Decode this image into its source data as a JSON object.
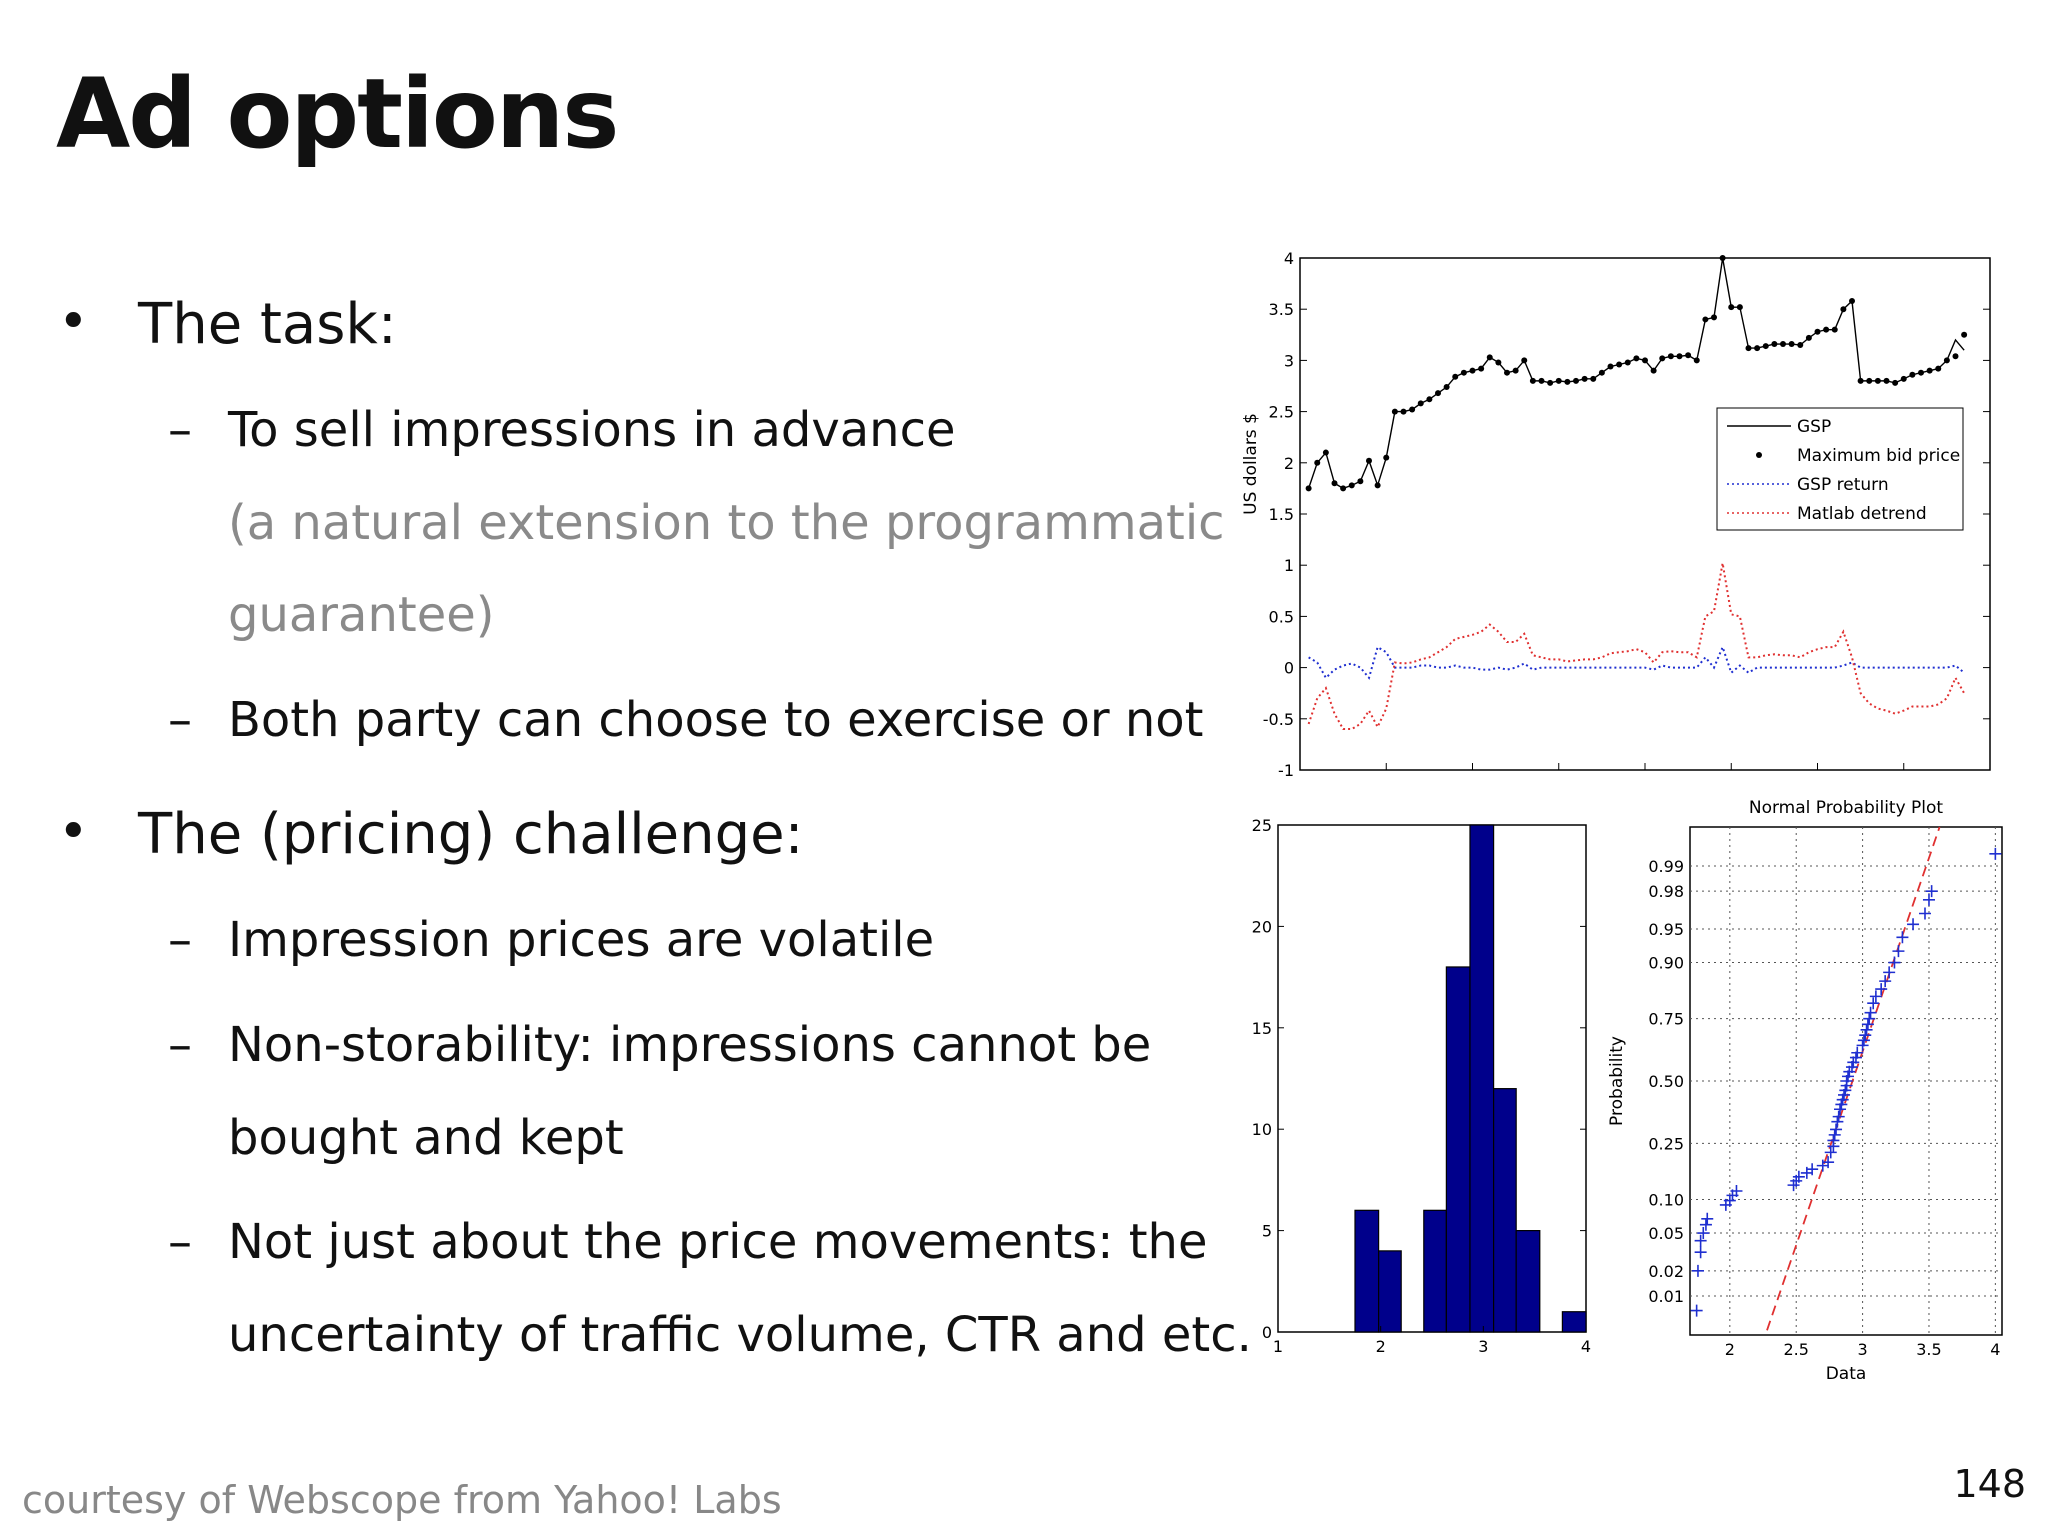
{
  "slide": {
    "title": "Ad options",
    "bullets": [
      {
        "label": "The task:",
        "subs": [
          {
            "lines": [
              "To sell impressions in advance"
            ],
            "note": [
              "(a natural extension to the programmatic",
              "guarantee)"
            ]
          },
          {
            "lines": [
              "Both party can choose to exercise or not"
            ]
          }
        ]
      },
      {
        "label": "The (pricing) challenge:",
        "subs": [
          {
            "lines": [
              "Impression prices are volatile"
            ]
          },
          {
            "lines": [
              "Non-storability: impressions cannot be",
              "bought and kept"
            ]
          },
          {
            "lines": [
              "Not just about the price movements: the",
              "uncertainty of traffic volume, CTR and etc."
            ]
          }
        ]
      }
    ],
    "bullet_glyph": "•",
    "dash_glyph": "–",
    "footer": "courtesy of Webscope from Yahoo! Labs",
    "page_number": "148"
  },
  "chart_data": [
    {
      "type": "line",
      "ylabel": "US dollars $",
      "ylim": [
        -1,
        4
      ],
      "xlim": [
        0,
        80
      ],
      "yticks": [
        "4",
        "3.5",
        "3",
        "2.5",
        "2",
        "1.5",
        "1",
        "0.5",
        "0",
        "-0.5",
        "-1"
      ],
      "legend_position": "right",
      "series": [
        {
          "name": "GSP",
          "color": "#000000",
          "style": "solid",
          "x": [
            1,
            2,
            3,
            4,
            5,
            6,
            7,
            8,
            9,
            10,
            11,
            12,
            13,
            14,
            15,
            16,
            17,
            18,
            19,
            20,
            21,
            22,
            23,
            24,
            25,
            26,
            27,
            28,
            29,
            30,
            31,
            32,
            33,
            34,
            35,
            36,
            37,
            38,
            39,
            40,
            41,
            42,
            43,
            44,
            45,
            46,
            47,
            48,
            49,
            50,
            51,
            52,
            53,
            54,
            55,
            56,
            57,
            58,
            59,
            60,
            61,
            62,
            63,
            64,
            65,
            66,
            67,
            68,
            69,
            70,
            71,
            72,
            73,
            74,
            75,
            76,
            77
          ],
          "y": [
            1.75,
            2.0,
            2.1,
            1.8,
            1.75,
            1.78,
            1.82,
            2.02,
            1.78,
            2.05,
            2.5,
            2.5,
            2.52,
            2.58,
            2.62,
            2.68,
            2.74,
            2.84,
            2.88,
            2.9,
            2.92,
            3.03,
            2.98,
            2.88,
            2.9,
            3.0,
            2.8,
            2.8,
            2.78,
            2.8,
            2.79,
            2.8,
            2.82,
            2.82,
            2.88,
            2.94,
            2.96,
            2.98,
            3.02,
            3.0,
            2.9,
            3.02,
            3.04,
            3.04,
            3.05,
            3.0,
            3.4,
            3.42,
            4.0,
            3.52,
            3.52,
            3.12,
            3.12,
            3.14,
            3.16,
            3.16,
            3.16,
            3.15,
            3.22,
            3.28,
            3.3,
            3.3,
            3.5,
            3.58,
            2.8,
            2.8,
            2.8,
            2.8,
            2.78,
            2.82,
            2.86,
            2.88,
            2.9,
            2.92,
            3.0,
            3.2,
            3.1
          ]
        },
        {
          "name": "Maximum bid price",
          "color": "#000000",
          "style": "markers",
          "x": [
            1,
            2,
            3,
            4,
            5,
            6,
            7,
            8,
            9,
            10,
            11,
            12,
            13,
            14,
            15,
            16,
            17,
            18,
            19,
            20,
            21,
            22,
            23,
            24,
            25,
            26,
            27,
            28,
            29,
            30,
            31,
            32,
            33,
            34,
            35,
            36,
            37,
            38,
            39,
            40,
            41,
            42,
            43,
            44,
            45,
            46,
            47,
            48,
            49,
            50,
            51,
            52,
            53,
            54,
            55,
            56,
            57,
            58,
            59,
            60,
            61,
            62,
            63,
            64,
            65,
            66,
            67,
            68,
            69,
            70,
            71,
            72,
            73,
            74,
            75,
            76,
            77
          ],
          "y": [
            1.75,
            2.0,
            2.1,
            1.8,
            1.75,
            1.78,
            1.82,
            2.02,
            1.78,
            2.05,
            2.5,
            2.5,
            2.52,
            2.58,
            2.62,
            2.68,
            2.74,
            2.84,
            2.88,
            2.9,
            2.92,
            3.03,
            2.98,
            2.88,
            2.9,
            3.0,
            2.8,
            2.8,
            2.78,
            2.8,
            2.79,
            2.8,
            2.82,
            2.82,
            2.88,
            2.94,
            2.96,
            2.98,
            3.02,
            3.0,
            2.9,
            3.02,
            3.04,
            3.04,
            3.05,
            3.0,
            3.4,
            3.42,
            4.0,
            3.52,
            3.52,
            3.12,
            3.12,
            3.14,
            3.16,
            3.16,
            3.16,
            3.15,
            3.22,
            3.28,
            3.3,
            3.3,
            3.5,
            3.58,
            2.8,
            2.8,
            2.8,
            2.8,
            2.78,
            2.82,
            2.86,
            2.88,
            2.9,
            2.92,
            3.0,
            3.04,
            3.25
          ]
        },
        {
          "name": "GSP return",
          "color": "#1f2fd0",
          "style": "dotted",
          "x": [
            1,
            2,
            3,
            4,
            5,
            6,
            7,
            8,
            9,
            10,
            11,
            12,
            13,
            14,
            15,
            16,
            17,
            18,
            19,
            20,
            21,
            22,
            23,
            24,
            25,
            26,
            27,
            28,
            29,
            30,
            31,
            32,
            33,
            34,
            35,
            36,
            37,
            38,
            39,
            40,
            41,
            42,
            43,
            44,
            45,
            46,
            47,
            48,
            49,
            50,
            51,
            52,
            53,
            54,
            55,
            56,
            57,
            58,
            59,
            60,
            61,
            62,
            63,
            64,
            65,
            66,
            67,
            68,
            69,
            70,
            71,
            72,
            73,
            74,
            75,
            76,
            77
          ],
          "y": [
            0.1,
            0.05,
            -0.1,
            -0.02,
            0.02,
            0.04,
            0.0,
            -0.1,
            0.2,
            0.15,
            0.0,
            0.0,
            0.0,
            0.02,
            0.02,
            0.0,
            0.0,
            0.02,
            0.0,
            0.0,
            -0.02,
            -0.02,
            0.0,
            -0.02,
            0.0,
            0.04,
            -0.02,
            0.0,
            0.0,
            0.0,
            0.0,
            0.0,
            0.0,
            0.0,
            0.0,
            0.0,
            0.0,
            0.0,
            0.0,
            0.0,
            -0.02,
            0.02,
            0.0,
            0.0,
            0.0,
            0.0,
            0.1,
            0.0,
            0.2,
            -0.05,
            0.02,
            -0.05,
            0.0,
            0.0,
            0.0,
            0.0,
            0.0,
            0.0,
            0.0,
            0.0,
            0.0,
            0.0,
            0.02,
            0.05,
            0.0,
            0.0,
            0.0,
            0.0,
            0.0,
            0.0,
            0.0,
            0.0,
            0.0,
            0.0,
            0.0,
            0.02,
            -0.05
          ]
        },
        {
          "name": "Matlab detrend",
          "color": "#e03030",
          "style": "dotted",
          "x": [
            1,
            2,
            3,
            4,
            5,
            6,
            7,
            8,
            9,
            10,
            11,
            12,
            13,
            14,
            15,
            16,
            17,
            18,
            19,
            20,
            21,
            22,
            23,
            24,
            25,
            26,
            27,
            28,
            29,
            30,
            31,
            32,
            33,
            34,
            35,
            36,
            37,
            38,
            39,
            40,
            41,
            42,
            43,
            44,
            45,
            46,
            47,
            48,
            49,
            50,
            51,
            52,
            53,
            54,
            55,
            56,
            57,
            58,
            59,
            60,
            61,
            62,
            63,
            64,
            65,
            66,
            67,
            68,
            69,
            70,
            71,
            72,
            73,
            74,
            75,
            76,
            77
          ],
          "y": [
            -0.55,
            -0.3,
            -0.2,
            -0.45,
            -0.6,
            -0.6,
            -0.55,
            -0.42,
            -0.58,
            -0.4,
            0.05,
            0.04,
            0.05,
            0.08,
            0.1,
            0.15,
            0.2,
            0.28,
            0.3,
            0.32,
            0.35,
            0.42,
            0.35,
            0.25,
            0.25,
            0.33,
            0.12,
            0.1,
            0.08,
            0.08,
            0.06,
            0.07,
            0.08,
            0.08,
            0.1,
            0.14,
            0.15,
            0.16,
            0.18,
            0.15,
            0.05,
            0.15,
            0.16,
            0.15,
            0.15,
            0.1,
            0.5,
            0.55,
            1.02,
            0.52,
            0.5,
            0.1,
            0.1,
            0.12,
            0.13,
            0.12,
            0.12,
            0.1,
            0.15,
            0.18,
            0.2,
            0.2,
            0.35,
            0.1,
            -0.25,
            -0.35,
            -0.4,
            -0.42,
            -0.45,
            -0.42,
            -0.38,
            -0.38,
            -0.38,
            -0.36,
            -0.3,
            -0.1,
            -0.25
          ]
        }
      ]
    },
    {
      "type": "bar",
      "xlim": [
        1,
        4
      ],
      "ylim": [
        0,
        25
      ],
      "xticks": [
        "1",
        "2",
        "3",
        "4"
      ],
      "yticks": [
        "25",
        "20",
        "15",
        "10",
        "5",
        "0"
      ],
      "bar_color": "#00008b",
      "bins": [
        {
          "x0": 1.75,
          "x1": 1.98,
          "value": 6
        },
        {
          "x0": 1.98,
          "x1": 2.2,
          "value": 4
        },
        {
          "x0": 2.42,
          "x1": 2.64,
          "value": 6
        },
        {
          "x0": 2.64,
          "x1": 2.87,
          "value": 18
        },
        {
          "x0": 2.87,
          "x1": 3.1,
          "value": 25
        },
        {
          "x0": 3.1,
          "x1": 3.32,
          "value": 12
        },
        {
          "x0": 3.32,
          "x1": 3.55,
          "value": 5
        },
        {
          "x0": 3.77,
          "x1": 4.0,
          "value": 1
        }
      ]
    },
    {
      "type": "scatter",
      "title": "Normal Probability Plot",
      "xlabel": "Data",
      "ylabel": "Probability",
      "xlim": [
        1.7,
        4.05
      ],
      "xticks": [
        "2",
        "2.5",
        "3",
        "3.5",
        "4"
      ],
      "yticks": [
        "0.99",
        "0.98",
        "0.95",
        "0.90",
        "0.75",
        "0.50",
        "0.25",
        "0.10",
        "0.05",
        "0.02",
        "0.01"
      ],
      "grid": true,
      "marker_color": "#1f2fd0",
      "fit_line_color": "#e03030",
      "points": [
        [
          1.75,
          0.0065
        ],
        [
          1.76,
          0.02
        ],
        [
          1.78,
          0.032
        ],
        [
          1.78,
          0.042
        ],
        [
          1.8,
          0.05
        ],
        [
          1.82,
          0.06
        ],
        [
          1.83,
          0.068
        ],
        [
          1.97,
          0.09
        ],
        [
          2.0,
          0.098
        ],
        [
          2.02,
          0.108
        ],
        [
          2.05,
          0.117
        ],
        [
          2.48,
          0.13
        ],
        [
          2.5,
          0.14
        ],
        [
          2.52,
          0.15
        ],
        [
          2.58,
          0.16
        ],
        [
          2.62,
          0.17
        ],
        [
          2.7,
          0.18
        ],
        [
          2.74,
          0.19
        ],
        [
          2.76,
          0.22
        ],
        [
          2.78,
          0.24
        ],
        [
          2.78,
          0.26
        ],
        [
          2.79,
          0.28
        ],
        [
          2.8,
          0.3
        ],
        [
          2.81,
          0.33
        ],
        [
          2.82,
          0.35
        ],
        [
          2.83,
          0.38
        ],
        [
          2.84,
          0.4
        ],
        [
          2.85,
          0.42
        ],
        [
          2.86,
          0.44
        ],
        [
          2.87,
          0.46
        ],
        [
          2.88,
          0.48
        ],
        [
          2.88,
          0.5
        ],
        [
          2.89,
          0.52
        ],
        [
          2.9,
          0.54
        ],
        [
          2.92,
          0.56
        ],
        [
          2.93,
          0.58
        ],
        [
          2.95,
          0.6
        ],
        [
          2.96,
          0.62
        ],
        [
          3.0,
          0.65
        ],
        [
          3.01,
          0.67
        ],
        [
          3.02,
          0.69
        ],
        [
          3.03,
          0.71
        ],
        [
          3.04,
          0.73
        ],
        [
          3.05,
          0.75
        ],
        [
          3.06,
          0.77
        ],
        [
          3.08,
          0.8
        ],
        [
          3.1,
          0.82
        ],
        [
          3.14,
          0.84
        ],
        [
          3.17,
          0.86
        ],
        [
          3.2,
          0.88
        ],
        [
          3.24,
          0.9
        ],
        [
          3.27,
          0.92
        ],
        [
          3.3,
          0.94
        ],
        [
          3.38,
          0.955
        ],
        [
          3.47,
          0.965
        ],
        [
          3.5,
          0.975
        ],
        [
          3.52,
          0.98
        ],
        [
          4.0,
          0.993
        ]
      ],
      "fit_line": {
        "x": [
          2.28,
          3.58
        ],
        "p": [
          0.0035,
          0.997
        ]
      }
    }
  ]
}
